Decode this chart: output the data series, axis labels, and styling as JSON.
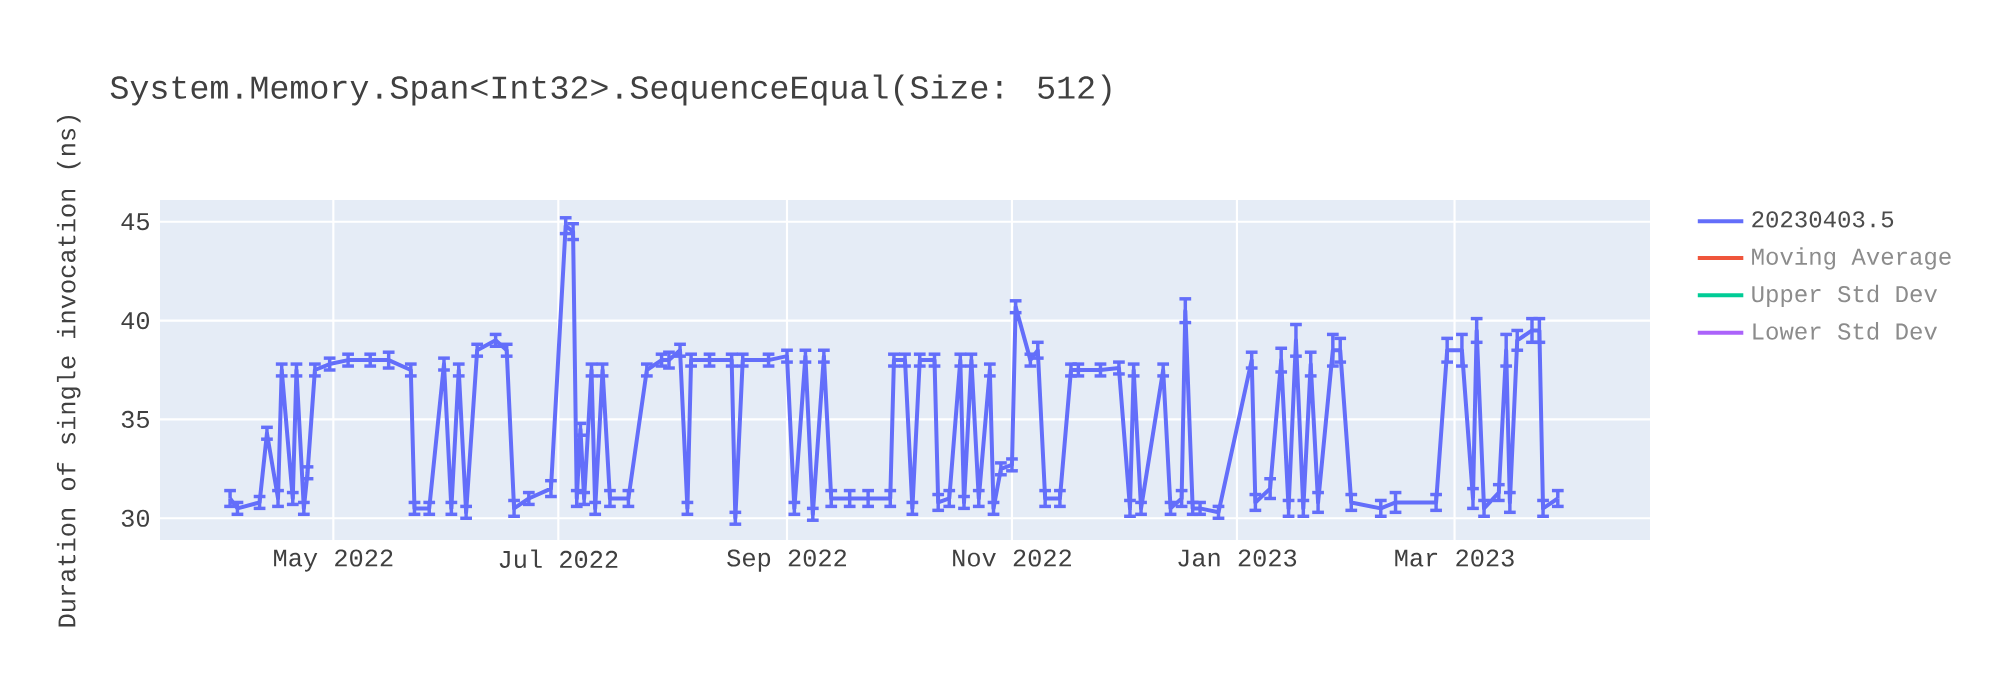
{
  "chart_data": {
    "type": "line",
    "title": "System.Memory.Span<Int32>.SequenceEqual(Size: 512)",
    "ylabel": "Duration of single invocation (ns)",
    "xlim": [
      "2022-03-15",
      "2023-04-23"
    ],
    "ylim": [
      28.9,
      46.1
    ],
    "xticks": [
      {
        "value": "2022-05-01",
        "label": "May 2022"
      },
      {
        "value": "2022-07-01",
        "label": "Jul 2022"
      },
      {
        "value": "2022-09-01",
        "label": "Sep 2022"
      },
      {
        "value": "2022-11-01",
        "label": "Nov 2022"
      },
      {
        "value": "2023-01-01",
        "label": "Jan 2023"
      },
      {
        "value": "2023-03-01",
        "label": "Mar 2023"
      }
    ],
    "yticks": [
      30,
      35,
      40,
      45
    ],
    "grid": true,
    "legend": "right",
    "x": [
      "2022-04-03",
      "2022-04-05",
      "2022-04-11",
      "2022-04-13",
      "2022-04-16",
      "2022-04-17",
      "2022-04-20",
      "2022-04-21",
      "2022-04-23",
      "2022-04-24",
      "2022-04-26",
      "2022-04-30",
      "2022-05-05",
      "2022-05-11",
      "2022-05-16",
      "2022-05-22",
      "2022-05-23",
      "2022-05-27",
      "2022-05-31",
      "2022-06-02",
      "2022-06-04",
      "2022-06-06",
      "2022-06-09",
      "2022-06-14",
      "2022-06-17",
      "2022-06-19",
      "2022-06-23",
      "2022-06-29",
      "2022-07-03",
      "2022-07-05",
      "2022-07-06",
      "2022-07-07",
      "2022-07-08",
      "2022-07-10",
      "2022-07-11",
      "2022-07-13",
      "2022-07-15",
      "2022-07-20",
      "2022-07-25",
      "2022-07-29",
      "2022-07-31",
      "2022-08-03",
      "2022-08-05",
      "2022-08-06",
      "2022-08-11",
      "2022-08-17",
      "2022-08-18",
      "2022-08-20",
      "2022-08-27",
      "2022-09-01",
      "2022-09-03",
      "2022-09-06",
      "2022-09-08",
      "2022-09-11",
      "2022-09-13",
      "2022-09-18",
      "2022-09-23",
      "2022-09-29",
      "2022-09-30",
      "2022-10-03",
      "2022-10-05",
      "2022-10-07",
      "2022-10-11",
      "2022-10-12",
      "2022-10-15",
      "2022-10-18",
      "2022-10-19",
      "2022-10-21",
      "2022-10-23",
      "2022-10-26",
      "2022-10-27",
      "2022-10-29",
      "2022-11-01",
      "2022-11-02",
      "2022-11-06",
      "2022-11-08",
      "2022-11-10",
      "2022-11-14",
      "2022-11-17",
      "2022-11-19",
      "2022-11-25",
      "2022-11-30",
      "2022-12-03",
      "2022-12-04",
      "2022-12-06",
      "2022-12-12",
      "2022-12-14",
      "2022-12-17",
      "2022-12-18",
      "2022-12-20",
      "2022-12-22",
      "2022-12-27",
      "2023-01-05",
      "2023-01-06",
      "2023-01-10",
      "2023-01-13",
      "2023-01-15",
      "2023-01-17",
      "2023-01-19",
      "2023-01-21",
      "2023-01-23",
      "2023-01-27",
      "2023-01-29",
      "2023-02-01",
      "2023-02-09",
      "2023-02-13",
      "2023-02-24",
      "2023-02-27",
      "2023-03-03",
      "2023-03-06",
      "2023-03-07",
      "2023-03-09",
      "2023-03-13",
      "2023-03-15",
      "2023-03-16",
      "2023-03-18",
      "2023-03-22",
      "2023-03-24",
      "2023-03-25",
      "2023-03-29"
    ],
    "series": [
      {
        "name": "20230403.5",
        "color": "#636efa",
        "values": [
          31.0,
          30.5,
          30.8,
          34.3,
          31.0,
          37.5,
          31.0,
          37.5,
          30.5,
          32.3,
          37.5,
          37.8,
          38.0,
          38.0,
          38.0,
          37.5,
          30.5,
          30.5,
          37.8,
          30.5,
          37.5,
          30.3,
          38.5,
          39.0,
          38.5,
          30.5,
          31.0,
          31.5,
          44.8,
          44.5,
          31.0,
          34.5,
          31.0,
          37.5,
          30.5,
          37.5,
          31.0,
          31.0,
          37.5,
          38.0,
          38.0,
          38.5,
          30.5,
          38.0,
          38.0,
          38.0,
          30.0,
          38.0,
          38.0,
          38.2,
          30.5,
          38.2,
          30.2,
          38.2,
          31.0,
          31.0,
          31.0,
          31.0,
          38.0,
          38.0,
          30.5,
          38.0,
          38.0,
          30.8,
          31.0,
          38.0,
          30.8,
          38.0,
          31.0,
          37.5,
          30.5,
          32.5,
          32.7,
          40.7,
          38.0,
          38.5,
          31.0,
          31.0,
          37.5,
          37.5,
          37.5,
          37.6,
          30.5,
          37.5,
          30.5,
          37.5,
          30.5,
          31.0,
          40.5,
          30.5,
          30.5,
          30.3,
          38.0,
          30.8,
          31.5,
          38.0,
          30.5,
          39.0,
          30.5,
          37.8,
          30.8,
          38.5,
          38.5,
          30.8,
          30.5,
          30.8,
          30.8,
          38.5,
          38.5,
          31.0,
          39.5,
          30.5,
          31.3,
          38.5,
          30.8,
          39.0,
          39.5,
          39.5,
          30.5,
          31.0
        ],
        "errors": [
          0.4,
          0.3,
          0.3,
          0.3,
          0.4,
          0.3,
          0.3,
          0.3,
          0.3,
          0.3,
          0.3,
          0.3,
          0.3,
          0.3,
          0.4,
          0.3,
          0.3,
          0.3,
          0.3,
          0.3,
          0.3,
          0.3,
          0.3,
          0.3,
          0.3,
          0.4,
          0.3,
          0.4,
          0.4,
          0.4,
          0.4,
          0.3,
          0.3,
          0.3,
          0.3,
          0.3,
          0.4,
          0.4,
          0.3,
          0.3,
          0.4,
          0.3,
          0.3,
          0.3,
          0.3,
          0.3,
          0.3,
          0.3,
          0.3,
          0.3,
          0.3,
          0.3,
          0.3,
          0.3,
          0.4,
          0.4,
          0.4,
          0.4,
          0.3,
          0.3,
          0.3,
          0.3,
          0.3,
          0.4,
          0.4,
          0.3,
          0.3,
          0.3,
          0.4,
          0.3,
          0.3,
          0.3,
          0.3,
          0.3,
          0.3,
          0.4,
          0.4,
          0.4,
          0.3,
          0.3,
          0.3,
          0.3,
          0.4,
          0.3,
          0.3,
          0.3,
          0.3,
          0.4,
          0.6,
          0.3,
          0.3,
          0.3,
          0.4,
          0.4,
          0.5,
          0.6,
          0.4,
          0.8,
          0.4,
          0.6,
          0.5,
          0.8,
          0.6,
          0.4,
          0.4,
          0.5,
          0.4,
          0.6,
          0.8,
          0.5,
          0.6,
          0.4,
          0.4,
          0.8,
          0.5,
          0.5,
          0.6,
          0.6,
          0.4,
          0.4
        ]
      },
      {
        "name": "Moving Average",
        "color": "#ef553b",
        "values": [
          null,
          null,
          null,
          null,
          null,
          null,
          null,
          null,
          null,
          null,
          null,
          null,
          null,
          null,
          null,
          null,
          null,
          null,
          null,
          null,
          null,
          null,
          null,
          null,
          null,
          null,
          null,
          null,
          null,
          null,
          null,
          null,
          null,
          null,
          null,
          null,
          null,
          null,
          null,
          null,
          null,
          null,
          null,
          null,
          null,
          null,
          null,
          null,
          null,
          null,
          null,
          null,
          null,
          null,
          null,
          null,
          null,
          null,
          null,
          null,
          null,
          null,
          null,
          null,
          null,
          null,
          null,
          null,
          null,
          null,
          null,
          null,
          null,
          null,
          null,
          null,
          null,
          null,
          null,
          null,
          null,
          null,
          null,
          null,
          null,
          null,
          null,
          null,
          null,
          null,
          null,
          null,
          null,
          null,
          null,
          null,
          null,
          null,
          null,
          null,
          null,
          null,
          null,
          null,
          null,
          null,
          null,
          null,
          null,
          null,
          null,
          null,
          null,
          null,
          null,
          null,
          null,
          null,
          null,
          null
        ]
      },
      {
        "name": "Upper Std Dev",
        "color": "#00cc96",
        "values": [
          null,
          null,
          null,
          null,
          null,
          null,
          null,
          null,
          null,
          null,
          null,
          null,
          null,
          null,
          null,
          null,
          null,
          null,
          null,
          null,
          null,
          null,
          null,
          null,
          null,
          null,
          null,
          null,
          null,
          null,
          null,
          null,
          null,
          null,
          null,
          null,
          null,
          null,
          null,
          null,
          null,
          null,
          null,
          null,
          null,
          null,
          null,
          null,
          null,
          null,
          null,
          null,
          null,
          null,
          null,
          null,
          null,
          null,
          null,
          null,
          null,
          null,
          null,
          null,
          null,
          null,
          null,
          null,
          null,
          null,
          null,
          null,
          null,
          null,
          null,
          null,
          null,
          null,
          null,
          null,
          null,
          null,
          null,
          null,
          null,
          null,
          null,
          null,
          null,
          null,
          null,
          null,
          null,
          null,
          null,
          null,
          null,
          null,
          null,
          null,
          null,
          null,
          null,
          null,
          null,
          null,
          null,
          null,
          null,
          null,
          null,
          null,
          null,
          null,
          null,
          null,
          null,
          null,
          null,
          null
        ]
      },
      {
        "name": "Lower Std Dev",
        "color": "#ab63fa",
        "values": [
          null,
          null,
          null,
          null,
          null,
          null,
          null,
          null,
          null,
          null,
          null,
          null,
          null,
          null,
          null,
          null,
          null,
          null,
          null,
          null,
          null,
          null,
          null,
          null,
          null,
          null,
          null,
          null,
          null,
          null,
          null,
          null,
          null,
          null,
          null,
          null,
          null,
          null,
          null,
          null,
          null,
          null,
          null,
          null,
          null,
          null,
          null,
          null,
          null,
          null,
          null,
          null,
          null,
          null,
          null,
          null,
          null,
          null,
          null,
          null,
          null,
          null,
          null,
          null,
          null,
          null,
          null,
          null,
          null,
          null,
          null,
          null,
          null,
          null,
          null,
          null,
          null,
          null,
          null,
          null,
          null,
          null,
          null,
          null,
          null,
          null,
          null,
          null,
          null,
          null,
          null,
          null,
          null,
          null,
          null,
          null,
          null,
          null,
          null,
          null,
          null,
          null,
          null,
          null,
          null,
          null,
          null,
          null,
          null,
          null,
          null,
          null,
          null,
          null,
          null,
          null,
          null,
          null,
          null,
          null
        ]
      }
    ]
  }
}
